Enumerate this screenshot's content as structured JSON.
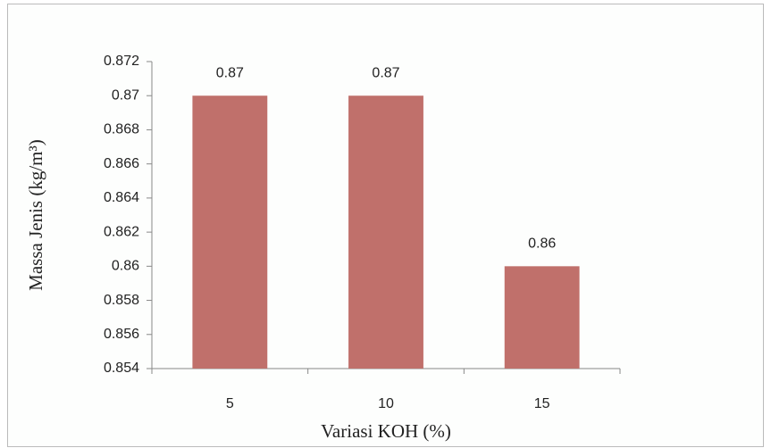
{
  "chart_data": {
    "type": "bar",
    "x_label": "Variasi KOH (%)",
    "y_label": "Massa Jenis (kg/m³)",
    "categories": [
      "5",
      "10",
      "15"
    ],
    "values": [
      0.87,
      0.87,
      0.86
    ],
    "color": "#c0706b",
    "ylim": [
      0.854,
      0.872
    ],
    "yticks": [
      0.854,
      0.856,
      0.858,
      0.86,
      0.862,
      0.864,
      0.866,
      0.868,
      0.87,
      0.872
    ],
    "grid": false
  }
}
